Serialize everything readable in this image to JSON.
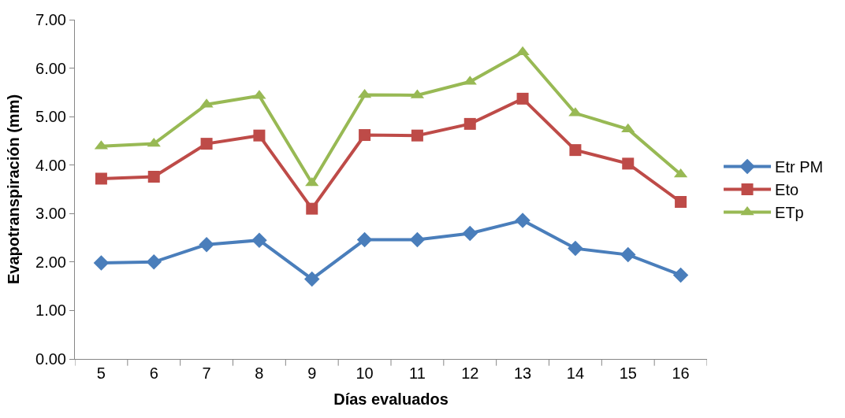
{
  "chart_data": {
    "type": "line",
    "xlabel": "Días evaluados",
    "ylabel": "Evapotranspiración (mm)",
    "categories": [
      "5",
      "6",
      "7",
      "8",
      "9",
      "10",
      "11",
      "12",
      "13",
      "14",
      "15",
      "16"
    ],
    "series": [
      {
        "name": "Etr PM",
        "color": "#4a7ebb",
        "marker": "diamond",
        "values": [
          1.98,
          2.0,
          2.36,
          2.45,
          1.65,
          2.46,
          2.46,
          2.59,
          2.86,
          2.28,
          2.15,
          1.73
        ]
      },
      {
        "name": "Eto",
        "color": "#be4b48",
        "marker": "square",
        "values": [
          3.72,
          3.76,
          4.44,
          4.61,
          3.1,
          4.62,
          4.61,
          4.85,
          5.37,
          4.31,
          4.03,
          3.24
        ]
      },
      {
        "name": "ETp",
        "color": "#98b954",
        "marker": "triangle",
        "values": [
          4.39,
          4.44,
          5.25,
          5.43,
          3.63,
          5.45,
          5.44,
          5.72,
          6.33,
          5.07,
          4.74,
          3.81
        ]
      }
    ],
    "ylim": [
      0,
      7
    ],
    "yticks": [
      {
        "value": 0,
        "label": "0.00"
      },
      {
        "value": 1,
        "label": "1.00"
      },
      {
        "value": 2,
        "label": "2.00"
      },
      {
        "value": 3,
        "label": "3.00"
      },
      {
        "value": 4,
        "label": "4.00"
      },
      {
        "value": 5,
        "label": "5.00"
      },
      {
        "value": 6,
        "label": "6.00"
      },
      {
        "value": 7,
        "label": "7.00"
      }
    ],
    "legend": "right",
    "line_style": "solid"
  }
}
